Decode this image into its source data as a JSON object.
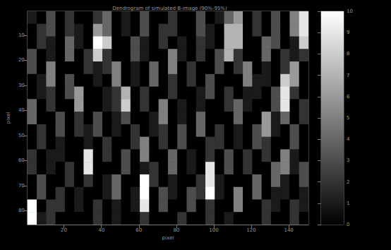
{
  "chart_data": {
    "type": "heatmap",
    "title": "Dendrogram of simulated B-image (90%-95%)",
    "x_label": "pixel",
    "y_label": "pixel",
    "x": [
      3,
      8,
      13,
      18,
      23,
      28,
      33,
      38,
      43,
      48,
      53,
      58,
      63,
      68,
      73,
      78,
      83,
      88,
      93,
      98,
      103,
      108,
      113,
      118,
      123,
      128,
      133,
      138,
      143,
      148
    ],
    "y": [
      3,
      8,
      13,
      18,
      23,
      28,
      33,
      38,
      43,
      48,
      53,
      58,
      63,
      68,
      73,
      78,
      83
    ],
    "cells": [
      [
        1,
        0,
        3,
        0,
        2,
        0,
        0,
        2,
        4,
        0,
        1,
        0,
        3,
        0,
        0,
        2,
        0,
        0,
        3,
        0,
        1,
        4,
        6,
        0,
        2,
        0,
        3,
        0,
        5,
        9
      ],
      [
        0,
        2,
        3,
        0,
        2,
        1,
        0,
        6,
        4,
        0,
        1,
        0,
        3,
        0,
        2,
        2,
        0,
        0,
        3,
        1,
        0,
        7,
        7,
        0,
        2,
        0,
        3,
        0,
        5,
        9
      ],
      [
        0,
        2,
        1,
        0,
        4,
        1,
        0,
        10,
        8,
        0,
        0,
        3,
        1,
        0,
        2,
        0,
        1,
        0,
        2,
        1,
        0,
        7,
        7,
        0,
        0,
        4,
        3,
        0,
        1,
        8
      ],
      [
        3,
        0,
        1,
        0,
        4,
        0,
        2,
        8,
        2,
        0,
        0,
        3,
        1,
        0,
        0,
        5,
        1,
        0,
        2,
        0,
        3,
        7,
        2,
        0,
        0,
        4,
        0,
        2,
        1,
        2
      ],
      [
        3,
        0,
        5,
        0,
        0,
        0,
        2,
        1,
        2,
        5,
        0,
        1,
        0,
        4,
        0,
        5,
        0,
        2,
        0,
        0,
        3,
        0,
        2,
        5,
        0,
        1,
        0,
        2,
        6,
        0
      ],
      [
        0,
        1,
        5,
        0,
        3,
        0,
        0,
        1,
        0,
        5,
        0,
        1,
        0,
        4,
        0,
        2,
        0,
        2,
        0,
        3,
        0,
        0,
        0,
        5,
        1,
        1,
        0,
        8,
        6,
        0
      ],
      [
        0,
        1,
        2,
        0,
        3,
        6,
        0,
        0,
        1,
        2,
        7,
        0,
        2,
        0,
        0,
        2,
        0,
        0,
        1,
        3,
        0,
        2,
        0,
        1,
        1,
        0,
        3,
        9,
        2,
        0
      ],
      [
        4,
        0,
        2,
        0,
        0,
        6,
        0,
        0,
        1,
        2,
        8,
        0,
        2,
        0,
        5,
        0,
        1,
        0,
        1,
        0,
        0,
        2,
        4,
        1,
        0,
        0,
        3,
        9,
        0,
        2
      ],
      [
        4,
        0,
        0,
        3,
        0,
        2,
        0,
        3,
        0,
        1,
        3,
        0,
        0,
        1,
        5,
        0,
        1,
        0,
        4,
        0,
        0,
        0,
        4,
        0,
        0,
        6,
        1,
        4,
        0,
        2
      ],
      [
        0,
        2,
        0,
        3,
        0,
        2,
        1,
        3,
        0,
        1,
        0,
        2,
        0,
        1,
        2,
        0,
        3,
        0,
        4,
        0,
        2,
        0,
        1,
        0,
        3,
        6,
        1,
        0,
        3,
        0
      ],
      [
        0,
        2,
        0,
        1,
        0,
        0,
        1,
        0,
        2,
        0,
        0,
        2,
        5,
        0,
        2,
        0,
        3,
        0,
        0,
        2,
        2,
        0,
        1,
        0,
        3,
        2,
        0,
        0,
        3,
        0
      ],
      [
        2,
        0,
        1,
        1,
        0,
        0,
        9,
        0,
        2,
        0,
        3,
        0,
        5,
        0,
        0,
        4,
        0,
        1,
        0,
        2,
        0,
        3,
        0,
        2,
        0,
        2,
        0,
        5,
        1,
        0
      ],
      [
        2,
        0,
        1,
        0,
        2,
        0,
        9,
        0,
        0,
        0,
        3,
        0,
        1,
        2,
        0,
        4,
        0,
        1,
        0,
        9,
        0,
        3,
        0,
        2,
        0,
        0,
        4,
        5,
        1,
        3
      ],
      [
        0,
        3,
        0,
        0,
        2,
        0,
        2,
        0,
        1,
        4,
        0,
        0,
        10,
        2,
        0,
        1,
        0,
        0,
        2,
        9,
        1,
        0,
        0,
        0,
        4,
        0,
        4,
        1,
        0,
        3
      ],
      [
        0,
        3,
        0,
        2,
        0,
        1,
        0,
        0,
        1,
        4,
        0,
        1,
        10,
        0,
        3,
        1,
        0,
        3,
        2,
        10,
        1,
        0,
        5,
        0,
        4,
        0,
        1,
        1,
        0,
        1
      ],
      [
        10,
        0,
        2,
        2,
        0,
        1,
        0,
        2,
        0,
        1,
        0,
        1,
        9,
        0,
        3,
        0,
        0,
        3,
        0,
        2,
        0,
        0,
        5,
        0,
        0,
        2,
        1,
        0,
        2,
        1
      ],
      [
        10,
        1,
        2,
        0,
        0,
        0,
        0,
        2,
        0,
        1,
        0,
        0,
        2,
        0,
        0,
        0,
        2,
        0,
        0,
        2,
        0,
        1,
        0,
        0,
        0,
        2,
        0,
        0,
        2,
        0
      ]
    ],
    "xlim": [
      0.5,
      150.5
    ],
    "xticks": [
      20,
      40,
      60,
      80,
      100,
      120,
      140
    ],
    "ylim": [
      0.5,
      85.5
    ],
    "yticks": [
      10,
      20,
      30,
      40,
      50,
      60,
      70,
      80
    ],
    "colorbar": {
      "range": [
        0,
        10
      ],
      "ticks": [
        0,
        1,
        2,
        3,
        4,
        5,
        6,
        7,
        8,
        9,
        10
      ]
    },
    "grid": false
  }
}
